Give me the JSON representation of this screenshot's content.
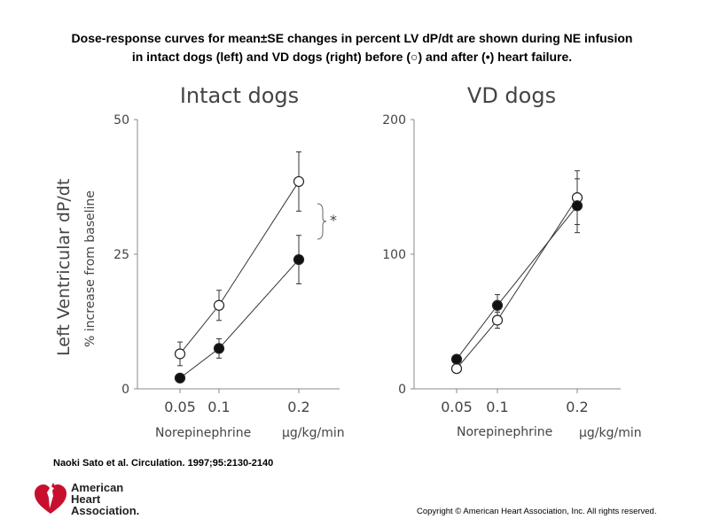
{
  "caption": {
    "line1": "Dose-response curves for mean±SE changes in percent LV dP/dt are shown during NE infusion",
    "line2": "in intact dogs (left) and VD dogs (right) before (○) and after (•) heart failure."
  },
  "shared": {
    "ylabel_main": "Left Ventricular dP/dt",
    "ylabel_sub": "% increase from baseline",
    "xlabel": "Norepinephrine",
    "xunit": "μg/kg/min",
    "x_tick_labels": [
      "0.05",
      "0.1",
      "0.2"
    ]
  },
  "chart_data": [
    {
      "type": "line",
      "title": "Intact dogs",
      "x": [
        0.05,
        0.1,
        0.2
      ],
      "ylim": [
        0,
        50
      ],
      "y_tick_labels": [
        "0",
        "25",
        "50"
      ],
      "series": [
        {
          "name": "before heart failure",
          "marker": "open",
          "values": [
            6.5,
            15.5,
            38.5
          ],
          "errors": [
            2.2,
            2.8,
            5.5
          ]
        },
        {
          "name": "after heart failure",
          "marker": "filled",
          "values": [
            2,
            7.5,
            24
          ],
          "errors": [
            0.8,
            1.8,
            4.5
          ]
        }
      ],
      "annotation": "*"
    },
    {
      "type": "line",
      "title": "VD dogs",
      "x": [
        0.05,
        0.1,
        0.2
      ],
      "ylim": [
        0,
        200
      ],
      "y_tick_labels": [
        "0",
        "100",
        "200"
      ],
      "series": [
        {
          "name": "before heart failure",
          "marker": "open",
          "values": [
            15,
            51,
            142
          ],
          "errors": [
            2,
            6,
            20
          ]
        },
        {
          "name": "after heart failure",
          "marker": "filled",
          "values": [
            22,
            62,
            136
          ],
          "errors": [
            2,
            8,
            20
          ]
        }
      ]
    }
  ],
  "citation": "Naoki Sato et al. Circulation. 1997;95:2130-2140",
  "logo": {
    "line1": "American",
    "line2": "Heart",
    "line3": "Association."
  },
  "copyright": "Copyright © American Heart Association, Inc. All rights reserved.",
  "colors": {
    "ink": "#333333",
    "axis": "#888888",
    "logo_red": "#c8102e"
  }
}
